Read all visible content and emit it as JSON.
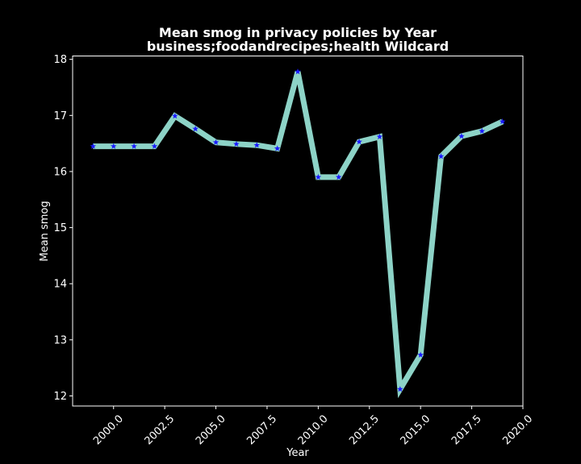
{
  "chart_data": {
    "type": "line",
    "title": "Mean smog in privacy policies by Year",
    "subtitle": "business;foodandrecipes;health Wildcard",
    "xlabel": "Year",
    "ylabel": "Mean smog",
    "xlim": [
      1998.0,
      2020.0
    ],
    "ylim": [
      11.82,
      18.06
    ],
    "x_ticks": [
      2000.0,
      2002.5,
      2005.0,
      2007.5,
      2010.0,
      2012.5,
      2015.0,
      2017.5,
      2020.0
    ],
    "x_tick_labels": [
      "2000.0",
      "2002.5",
      "2005.0",
      "2007.5",
      "2010.0",
      "2012.5",
      "2015.0",
      "2017.5",
      "2020.0"
    ],
    "y_ticks": [
      12,
      13,
      14,
      15,
      16,
      17,
      18
    ],
    "y_tick_labels": [
      "12",
      "13",
      "14",
      "15",
      "16",
      "17",
      "18"
    ],
    "grid": false,
    "series": [
      {
        "line_color": "#8dd3c7",
        "marker_color": "#1a1aff",
        "marker": "star",
        "x": [
          1999,
          2000,
          2001,
          2002,
          2003,
          2004,
          2005,
          2006,
          2007,
          2008,
          2009,
          2010,
          2011,
          2012,
          2013,
          2014,
          2015,
          2016,
          2017,
          2018,
          2019
        ],
        "y": [
          16.45,
          16.45,
          16.45,
          16.45,
          16.99,
          16.76,
          16.52,
          16.49,
          16.47,
          16.41,
          17.78,
          15.9,
          15.9,
          16.53,
          16.62,
          12.12,
          12.73,
          16.27,
          16.63,
          16.72,
          16.89
        ]
      }
    ]
  }
}
